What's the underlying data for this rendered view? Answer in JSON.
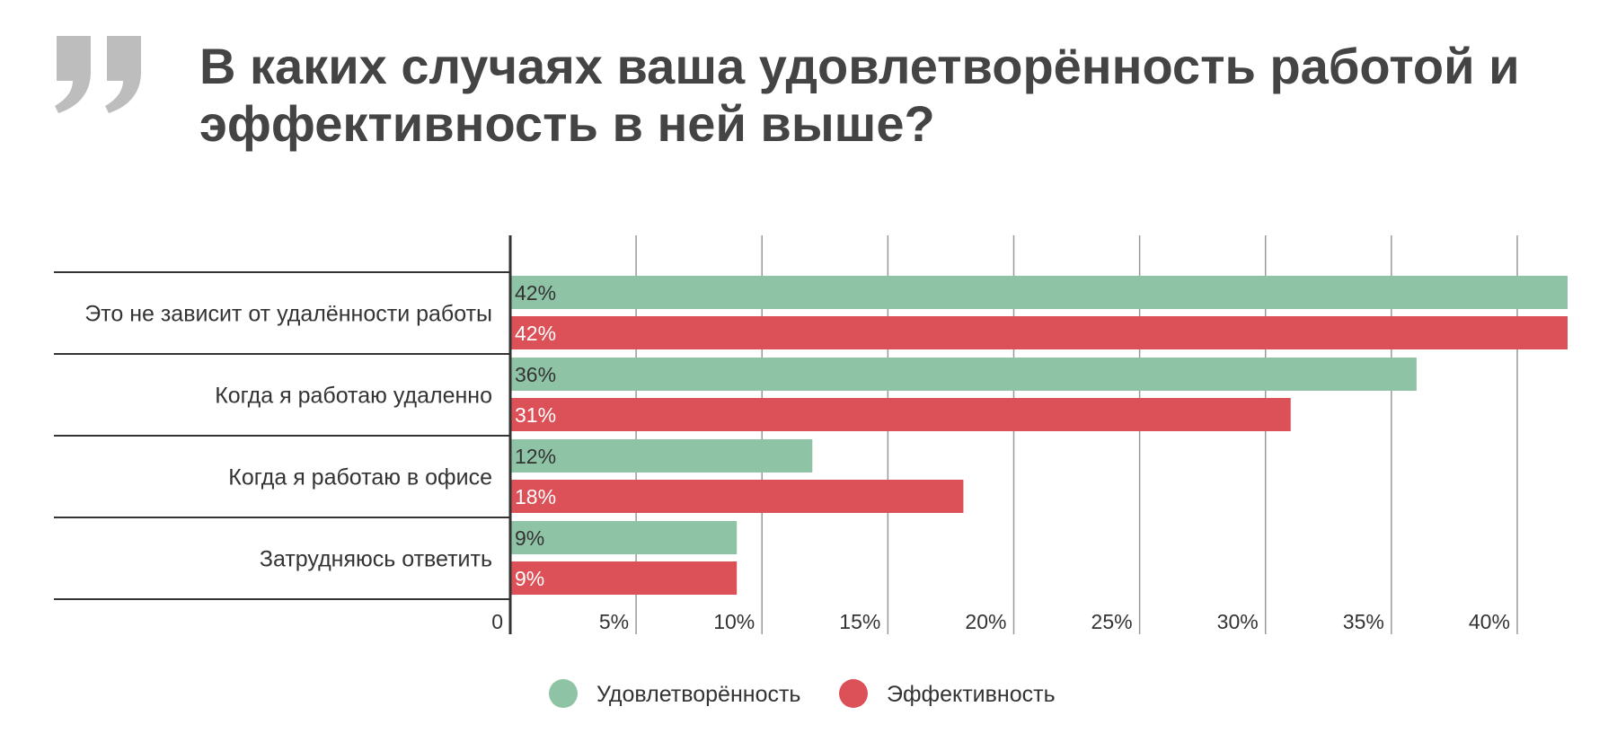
{
  "title": "В каких случаях ваша удовлетворённость работой и эффективность в ней выше?",
  "colors": {
    "satisfaction": "#8FC3A6",
    "efficiency": "#DC5157",
    "quote": "#BDBDBD",
    "grid": "#999999",
    "axis": "#333333"
  },
  "chart_data": {
    "type": "bar",
    "orientation": "horizontal",
    "categories": [
      "Это не зависит от удалённости работы",
      "Когда я работаю удаленно",
      "Когда я работаю в офисе",
      "Затрудняюсь ответить"
    ],
    "series": [
      {
        "name": "Удовлетворённость",
        "values": [
          42,
          36,
          12,
          9
        ],
        "labels": [
          "42%",
          "36%",
          "12%",
          "9%"
        ]
      },
      {
        "name": "Эффективность",
        "values": [
          42,
          31,
          18,
          9
        ],
        "labels": [
          "42%",
          "31%",
          "18%",
          "9%"
        ]
      }
    ],
    "xlim": [
      0,
      42
    ],
    "xticks": [
      0,
      5,
      10,
      15,
      20,
      25,
      30,
      35,
      40
    ],
    "xtick_labels": [
      "0",
      "5%",
      "10%",
      "15%",
      "20%",
      "25%",
      "30%",
      "35%",
      "40%"
    ],
    "grid": true,
    "legend_position": "bottom"
  }
}
